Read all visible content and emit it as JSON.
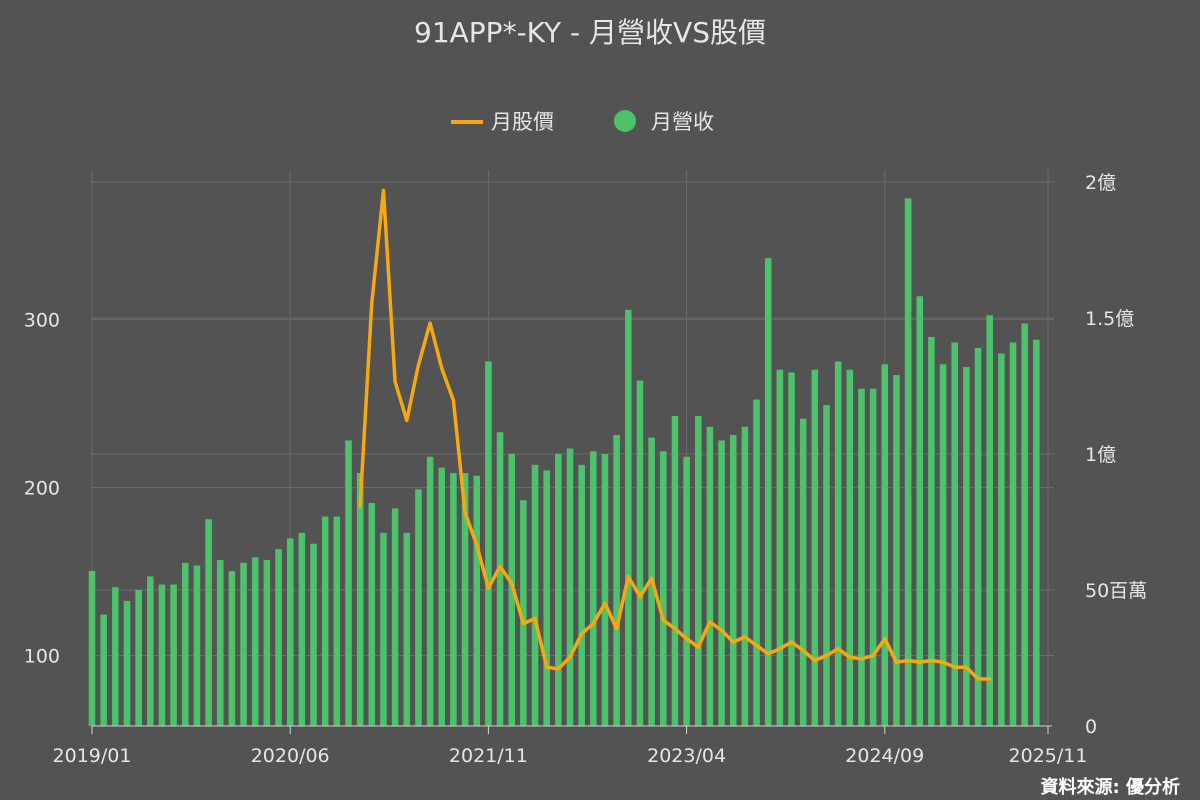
{
  "chart_data": {
    "type": "bar",
    "title": "91APP*-KY - 月營收VS股價",
    "source": "資料來源: 優分析",
    "legend": {
      "position": "top",
      "items": [
        {
          "name": "月股價",
          "kind": "line"
        },
        {
          "name": "月營收",
          "kind": "dot"
        }
      ]
    },
    "colors": {
      "background": "#535353",
      "revenue": "#4cc36a",
      "price": "#f5a80f",
      "grid": "#6b6b6b",
      "text": "#e6e6e6"
    },
    "x_axis": {
      "start": "2019/01",
      "end": "2025/11",
      "tick_labels": [
        "2019/01",
        "2020/06",
        "2021/11",
        "2023/04",
        "2024/09",
        "2025/11"
      ]
    },
    "y_left": {
      "min": 58,
      "max": 382,
      "tick_values": [
        100,
        200,
        300
      ],
      "tick_labels": [
        "100",
        "200",
        "300"
      ]
    },
    "y_right": {
      "min": 0,
      "max": 200000000,
      "tick_values": [
        0,
        50000000,
        100000000,
        150000000,
        200000000
      ],
      "tick_labels": [
        "0",
        "50百萬",
        "1億",
        "1.5億",
        "2億"
      ]
    },
    "series": [
      {
        "name": "月營收",
        "type": "bar",
        "axis": "right",
        "start": "2019/01",
        "values": [
          57000000,
          41000000,
          51000000,
          46000000,
          50000000,
          55000000,
          52000000,
          52000000,
          60000000,
          59000000,
          76000000,
          61000000,
          57000000,
          60000000,
          62000000,
          61000000,
          65000000,
          69000000,
          71000000,
          67000000,
          77000000,
          77000000,
          105000000,
          93000000,
          82000000,
          71000000,
          80000000,
          71000000,
          87000000,
          99000000,
          95000000,
          93000000,
          93000000,
          92000000,
          134000000,
          108000000,
          100000000,
          83000000,
          96000000,
          94000000,
          100000000,
          102000000,
          96000000,
          101000000,
          100000000,
          107000000,
          153000000,
          127000000,
          106000000,
          101000000,
          114000000,
          99000000,
          114000000,
          110000000,
          105000000,
          107000000,
          110000000,
          120000000,
          172000000,
          131000000,
          130000000,
          113000000,
          131000000,
          118000000,
          134000000,
          131000000,
          124000000,
          124000000,
          133000000,
          129000000,
          194000000,
          158000000,
          143000000,
          133000000,
          141000000,
          132000000,
          139000000,
          151000000,
          137000000,
          141000000,
          148000000,
          142000000
        ],
        "value_labels": []
      },
      {
        "name": "月股價",
        "type": "line",
        "axis": "left",
        "start": "2020/12",
        "values": [
          189,
          310,
          377,
          263,
          240,
          273,
          298,
          271,
          252,
          185,
          166,
          140,
          153,
          143,
          119,
          122,
          93,
          92,
          99,
          113,
          119,
          131,
          116,
          147,
          135,
          146,
          121,
          116,
          110,
          105,
          120,
          115,
          108,
          111,
          106,
          101,
          104,
          108,
          103,
          97,
          100,
          104,
          99,
          98,
          100,
          110,
          96,
          97,
          96,
          97,
          96,
          93,
          93,
          86,
          86
        ],
        "value_labels": []
      }
    ]
  }
}
